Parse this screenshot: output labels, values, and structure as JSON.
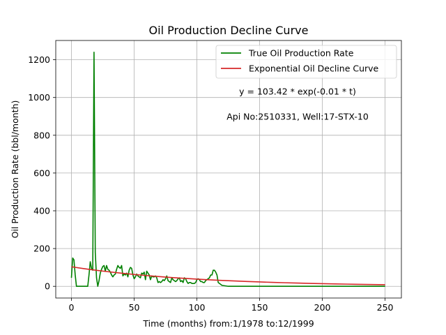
{
  "chart_data": {
    "type": "line",
    "title": "Oil Production Decline Curve",
    "xlabel": "Time (months) from:1/1978 to:12/1999",
    "ylabel": "Oil Production Rate (bbl/month)",
    "xlim": [
      -12.5,
      263
    ],
    "ylim": [
      -62,
      1302
    ],
    "xticks": [
      0,
      50,
      100,
      150,
      200,
      250
    ],
    "yticks": [
      0,
      200,
      400,
      600,
      800,
      1000,
      1200
    ],
    "grid": true,
    "legend_position": "top-right",
    "annotations": [
      "y = 103.42 * exp(-0.01 * t)",
      "Api No:2510331, Well:17-STX-10"
    ],
    "series": [
      {
        "name": "True Oil Production Rate",
        "color": "#008000",
        "x": [
          0,
          1,
          2,
          3,
          4,
          5,
          6,
          7,
          8,
          9,
          10,
          11,
          12,
          13,
          14,
          15,
          16,
          17,
          18,
          19,
          20,
          21,
          22,
          23,
          24,
          25,
          26,
          27,
          28,
          29,
          30,
          31,
          32,
          33,
          34,
          35,
          36,
          37,
          38,
          39,
          40,
          41,
          42,
          43,
          44,
          45,
          46,
          47,
          48,
          49,
          50,
          51,
          52,
          53,
          54,
          55,
          56,
          57,
          58,
          59,
          60,
          61,
          62,
          63,
          64,
          65,
          66,
          67,
          68,
          69,
          70,
          71,
          72,
          73,
          74,
          75,
          76,
          77,
          78,
          79,
          80,
          81,
          82,
          83,
          84,
          85,
          86,
          87,
          88,
          89,
          90,
          91,
          92,
          93,
          94,
          95,
          96,
          97,
          98,
          99,
          100,
          101,
          102,
          103,
          104,
          105,
          106,
          107,
          108,
          109,
          110,
          111,
          112,
          113,
          114,
          115,
          116,
          117,
          118,
          119,
          120,
          125,
          130,
          140,
          150,
          160,
          170,
          180,
          190,
          200,
          210,
          220,
          230,
          240,
          250
        ],
        "values": [
          45,
          150,
          140,
          60,
          0,
          0,
          0,
          0,
          0,
          0,
          0,
          0,
          0,
          0,
          60,
          130,
          95,
          85,
          1240,
          180,
          45,
          0,
          30,
          70,
          90,
          105,
          110,
          80,
          110,
          90,
          85,
          75,
          60,
          50,
          60,
          65,
          90,
          110,
          100,
          95,
          110,
          55,
          65,
          60,
          70,
          50,
          85,
          100,
          95,
          60,
          40,
          50,
          65,
          55,
          50,
          45,
          70,
          65,
          75,
          35,
          80,
          70,
          60,
          35,
          55,
          50,
          50,
          55,
          45,
          20,
          25,
          20,
          25,
          35,
          30,
          40,
          55,
          30,
          25,
          20,
          45,
          35,
          30,
          25,
          30,
          40,
          45,
          25,
          30,
          20,
          45,
          40,
          25,
          15,
          20,
          20,
          15,
          15,
          15,
          20,
          35,
          40,
          35,
          25,
          25,
          20,
          20,
          30,
          35,
          40,
          45,
          60,
          60,
          85,
          85,
          75,
          60,
          20,
          15,
          10,
          5,
          0,
          0,
          0,
          0,
          0,
          0,
          0,
          0,
          0,
          0,
          0,
          0,
          0,
          0
        ]
      },
      {
        "name": "Exponential Oil Decline Curve",
        "color": "#d62728",
        "x": [
          0,
          10,
          20,
          30,
          40,
          50,
          60,
          70,
          80,
          90,
          100,
          110,
          120,
          130,
          140,
          150,
          160,
          170,
          180,
          190,
          200,
          210,
          220,
          230,
          240,
          250
        ],
        "values": [
          103.42,
          93.58,
          84.67,
          76.61,
          69.32,
          62.73,
          56.76,
          51.36,
          46.47,
          42.05,
          38.04,
          34.42,
          31.15,
          28.19,
          25.5,
          23.08,
          20.88,
          18.89,
          17.09,
          15.47,
          14.0,
          12.66,
          11.46,
          10.37,
          9.38,
          8.49
        ]
      }
    ]
  }
}
